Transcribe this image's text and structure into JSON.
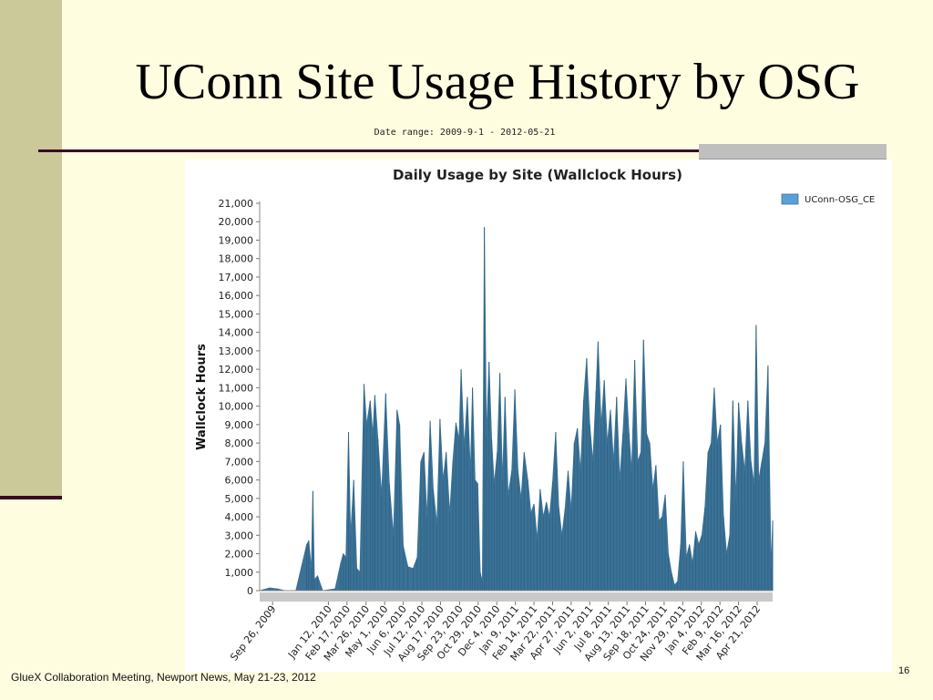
{
  "slide": {
    "title": "UConn Site Usage History by OSG",
    "footer": "GlueX Collaboration Meeting, Newport News, May 21-23, 2012",
    "page_number": "16"
  },
  "colors": {
    "background": "#fffde0",
    "sidebar": "#cbc89a",
    "rule": "#3a0a24",
    "series": "#3b7296",
    "legend_swatch": "#5aa0d8"
  },
  "chart_data": {
    "type": "bar",
    "date_range_label": "Date range: 2009-9-1 - 2012-05-21",
    "title": "Daily Usage by Site (Wallclock Hours)",
    "xlabel": "",
    "ylabel": "Wallclock Hours",
    "ylim": [
      0,
      21000
    ],
    "yticks": [
      0,
      1000,
      2000,
      3000,
      4000,
      5000,
      6000,
      7000,
      8000,
      9000,
      10000,
      11000,
      12000,
      13000,
      14000,
      15000,
      16000,
      17000,
      18000,
      19000,
      20000,
      21000
    ],
    "ytick_labels": [
      "0",
      "1,000",
      "2,000",
      "3,000",
      "4,000",
      "5,000",
      "6,000",
      "7,000",
      "8,000",
      "9,000",
      "10,000",
      "11,000",
      "12,000",
      "13,000",
      "14,000",
      "15,000",
      "16,000",
      "17,000",
      "18,000",
      "19,000",
      "20,000",
      "21,000"
    ],
    "x_start": "2009-09-01",
    "x_end": "2012-05-21",
    "xtick_labels": [
      {
        "date": "2009-09-26",
        "label": "Sep 26, 2009"
      },
      {
        "date": "2010-01-12",
        "label": "Jan 12, 2010"
      },
      {
        "date": "2010-02-17",
        "label": "Feb 17, 2010"
      },
      {
        "date": "2010-03-26",
        "label": "Mar 26, 2010"
      },
      {
        "date": "2010-05-01",
        "label": "May 1, 2010"
      },
      {
        "date": "2010-06-06",
        "label": "Jun 6, 2010"
      },
      {
        "date": "2010-07-12",
        "label": "Jul 12, 2010"
      },
      {
        "date": "2010-08-17",
        "label": "Aug 17, 2010"
      },
      {
        "date": "2010-09-23",
        "label": "Sep 23, 2010"
      },
      {
        "date": "2010-10-29",
        "label": "Oct 29, 2010"
      },
      {
        "date": "2010-12-04",
        "label": "Dec 4, 2010"
      },
      {
        "date": "2011-01-09",
        "label": "Jan 9, 2011"
      },
      {
        "date": "2011-02-14",
        "label": "Feb 14, 2011"
      },
      {
        "date": "2011-03-22",
        "label": "Mar 22, 2011"
      },
      {
        "date": "2011-04-27",
        "label": "Apr 27, 2011"
      },
      {
        "date": "2011-06-02",
        "label": "Jun 2, 2011"
      },
      {
        "date": "2011-07-08",
        "label": "Jul 8, 2011"
      },
      {
        "date": "2011-08-13",
        "label": "Aug 13, 2011"
      },
      {
        "date": "2011-09-18",
        "label": "Sep 18, 2011"
      },
      {
        "date": "2011-10-24",
        "label": "Oct 24, 2011"
      },
      {
        "date": "2011-11-29",
        "label": "Nov 29, 2011"
      },
      {
        "date": "2012-01-04",
        "label": "Jan 4, 2012"
      },
      {
        "date": "2012-02-09",
        "label": "Feb 9, 2012"
      },
      {
        "date": "2012-03-16",
        "label": "Mar 16, 2012"
      },
      {
        "date": "2012-04-21",
        "label": "Apr 21, 2012"
      }
    ],
    "legend": {
      "position": "top-right",
      "entries": [
        "UConn-OSG_CE"
      ]
    },
    "grid": false,
    "series": [
      {
        "name": "UConn-OSG_CE",
        "values_note": "",
        "points": [
          {
            "x": "2009-09-01",
            "y": 0
          },
          {
            "x": "2009-09-20",
            "y": 150
          },
          {
            "x": "2009-10-05",
            "y": 100
          },
          {
            "x": "2009-10-20",
            "y": 0
          },
          {
            "x": "2009-11-10",
            "y": 0
          },
          {
            "x": "2009-12-01",
            "y": 2500
          },
          {
            "x": "2009-12-05",
            "y": 2700
          },
          {
            "x": "2009-12-10",
            "y": 1200
          },
          {
            "x": "2009-12-13",
            "y": 5400
          },
          {
            "x": "2009-12-16",
            "y": 600
          },
          {
            "x": "2009-12-22",
            "y": 800
          },
          {
            "x": "2010-01-01",
            "y": 0
          },
          {
            "x": "2010-01-25",
            "y": 100
          },
          {
            "x": "2010-02-05",
            "y": 1500
          },
          {
            "x": "2010-02-10",
            "y": 2000
          },
          {
            "x": "2010-02-15",
            "y": 1800
          },
          {
            "x": "2010-02-20",
            "y": 8600
          },
          {
            "x": "2010-02-24",
            "y": 3000
          },
          {
            "x": "2010-03-02",
            "y": 6000
          },
          {
            "x": "2010-03-08",
            "y": 1200
          },
          {
            "x": "2010-03-14",
            "y": 1000
          },
          {
            "x": "2010-03-22",
            "y": 11200
          },
          {
            "x": "2010-03-27",
            "y": 9000
          },
          {
            "x": "2010-04-03",
            "y": 10300
          },
          {
            "x": "2010-04-08",
            "y": 8500
          },
          {
            "x": "2010-04-12",
            "y": 10600
          },
          {
            "x": "2010-04-18",
            "y": 8200
          },
          {
            "x": "2010-04-25",
            "y": 5200
          },
          {
            "x": "2010-05-03",
            "y": 10700
          },
          {
            "x": "2010-05-10",
            "y": 5800
          },
          {
            "x": "2010-05-18",
            "y": 3000
          },
          {
            "x": "2010-05-25",
            "y": 9800
          },
          {
            "x": "2010-05-30",
            "y": 9000
          },
          {
            "x": "2010-06-06",
            "y": 2400
          },
          {
            "x": "2010-06-15",
            "y": 1300
          },
          {
            "x": "2010-06-25",
            "y": 1200
          },
          {
            "x": "2010-07-03",
            "y": 1800
          },
          {
            "x": "2010-07-10",
            "y": 7000
          },
          {
            "x": "2010-07-16",
            "y": 7500
          },
          {
            "x": "2010-07-22",
            "y": 4000
          },
          {
            "x": "2010-07-28",
            "y": 9200
          },
          {
            "x": "2010-08-03",
            "y": 5500
          },
          {
            "x": "2010-08-10",
            "y": 3600
          },
          {
            "x": "2010-08-16",
            "y": 9300
          },
          {
            "x": "2010-08-22",
            "y": 6000
          },
          {
            "x": "2010-08-28",
            "y": 7500
          },
          {
            "x": "2010-09-04",
            "y": 4200
          },
          {
            "x": "2010-09-10",
            "y": 7000
          },
          {
            "x": "2010-09-16",
            "y": 9100
          },
          {
            "x": "2010-09-22",
            "y": 8200
          },
          {
            "x": "2010-09-26",
            "y": 12000
          },
          {
            "x": "2010-10-02",
            "y": 7800
          },
          {
            "x": "2010-10-08",
            "y": 10500
          },
          {
            "x": "2010-10-14",
            "y": 6500
          },
          {
            "x": "2010-10-18",
            "y": 11000
          },
          {
            "x": "2010-10-23",
            "y": 6000
          },
          {
            "x": "2010-10-28",
            "y": 5800
          },
          {
            "x": "2010-11-02",
            "y": 1000
          },
          {
            "x": "2010-11-06",
            "y": 500
          },
          {
            "x": "2010-11-10",
            "y": 19700
          },
          {
            "x": "2010-11-14",
            "y": 8400
          },
          {
            "x": "2010-11-19",
            "y": 12400
          },
          {
            "x": "2010-11-24",
            "y": 8200
          },
          {
            "x": "2010-11-29",
            "y": 5800
          },
          {
            "x": "2010-12-05",
            "y": 7500
          },
          {
            "x": "2010-12-10",
            "y": 11800
          },
          {
            "x": "2010-12-15",
            "y": 6000
          },
          {
            "x": "2010-12-20",
            "y": 10500
          },
          {
            "x": "2010-12-26",
            "y": 5200
          },
          {
            "x": "2011-01-02",
            "y": 6500
          },
          {
            "x": "2011-01-08",
            "y": 10900
          },
          {
            "x": "2011-01-14",
            "y": 6500
          },
          {
            "x": "2011-01-20",
            "y": 5000
          },
          {
            "x": "2011-01-26",
            "y": 7500
          },
          {
            "x": "2011-02-02",
            "y": 6000
          },
          {
            "x": "2011-02-08",
            "y": 4200
          },
          {
            "x": "2011-02-14",
            "y": 4700
          },
          {
            "x": "2011-02-20",
            "y": 2800
          },
          {
            "x": "2011-02-26",
            "y": 5500
          },
          {
            "x": "2011-03-04",
            "y": 4000
          },
          {
            "x": "2011-03-10",
            "y": 4800
          },
          {
            "x": "2011-03-16",
            "y": 4000
          },
          {
            "x": "2011-03-22",
            "y": 5900
          },
          {
            "x": "2011-03-28",
            "y": 8600
          },
          {
            "x": "2011-04-03",
            "y": 4500
          },
          {
            "x": "2011-04-09",
            "y": 3000
          },
          {
            "x": "2011-04-15",
            "y": 4400
          },
          {
            "x": "2011-04-21",
            "y": 6500
          },
          {
            "x": "2011-04-27",
            "y": 4400
          },
          {
            "x": "2011-05-03",
            "y": 8000
          },
          {
            "x": "2011-05-09",
            "y": 8800
          },
          {
            "x": "2011-05-15",
            "y": 6500
          },
          {
            "x": "2011-05-21",
            "y": 10300
          },
          {
            "x": "2011-05-27",
            "y": 12600
          },
          {
            "x": "2011-06-02",
            "y": 9000
          },
          {
            "x": "2011-06-08",
            "y": 7000
          },
          {
            "x": "2011-06-14",
            "y": 10800
          },
          {
            "x": "2011-06-18",
            "y": 13500
          },
          {
            "x": "2011-06-24",
            "y": 9000
          },
          {
            "x": "2011-06-30",
            "y": 11400
          },
          {
            "x": "2011-07-06",
            "y": 8000
          },
          {
            "x": "2011-07-12",
            "y": 9800
          },
          {
            "x": "2011-07-18",
            "y": 7000
          },
          {
            "x": "2011-07-24",
            "y": 10500
          },
          {
            "x": "2011-07-30",
            "y": 6000
          },
          {
            "x": "2011-08-05",
            "y": 8500
          },
          {
            "x": "2011-08-11",
            "y": 11500
          },
          {
            "x": "2011-08-17",
            "y": 8500
          },
          {
            "x": "2011-08-22",
            "y": 6500
          },
          {
            "x": "2011-08-28",
            "y": 12500
          },
          {
            "x": "2011-09-03",
            "y": 7000
          },
          {
            "x": "2011-09-09",
            "y": 7500
          },
          {
            "x": "2011-09-14",
            "y": 13600
          },
          {
            "x": "2011-09-20",
            "y": 8500
          },
          {
            "x": "2011-09-26",
            "y": 8000
          },
          {
            "x": "2011-10-02",
            "y": 5500
          },
          {
            "x": "2011-10-08",
            "y": 6800
          },
          {
            "x": "2011-10-14",
            "y": 3800
          },
          {
            "x": "2011-10-20",
            "y": 4000
          },
          {
            "x": "2011-10-26",
            "y": 5200
          },
          {
            "x": "2011-11-01",
            "y": 2000
          },
          {
            "x": "2011-11-07",
            "y": 1000
          },
          {
            "x": "2011-11-13",
            "y": 300
          },
          {
            "x": "2011-11-19",
            "y": 500
          },
          {
            "x": "2011-11-25",
            "y": 2500
          },
          {
            "x": "2011-11-30",
            "y": 7000
          },
          {
            "x": "2011-12-06",
            "y": 1800
          },
          {
            "x": "2011-12-12",
            "y": 2500
          },
          {
            "x": "2011-12-18",
            "y": 1500
          },
          {
            "x": "2011-12-24",
            "y": 3200
          },
          {
            "x": "2011-12-30",
            "y": 2500
          },
          {
            "x": "2012-01-05",
            "y": 3000
          },
          {
            "x": "2012-01-11",
            "y": 4500
          },
          {
            "x": "2012-01-17",
            "y": 7500
          },
          {
            "x": "2012-01-23",
            "y": 8000
          },
          {
            "x": "2012-01-29",
            "y": 11000
          },
          {
            "x": "2012-02-04",
            "y": 8000
          },
          {
            "x": "2012-02-10",
            "y": 9000
          },
          {
            "x": "2012-02-16",
            "y": 4000
          },
          {
            "x": "2012-02-22",
            "y": 2000
          },
          {
            "x": "2012-02-28",
            "y": 3000
          },
          {
            "x": "2012-03-05",
            "y": 10300
          },
          {
            "x": "2012-03-11",
            "y": 5000
          },
          {
            "x": "2012-03-16",
            "y": 10200
          },
          {
            "x": "2012-03-22",
            "y": 8000
          },
          {
            "x": "2012-03-28",
            "y": 6500
          },
          {
            "x": "2012-04-03",
            "y": 10300
          },
          {
            "x": "2012-04-09",
            "y": 7000
          },
          {
            "x": "2012-04-15",
            "y": 5800
          },
          {
            "x": "2012-04-19",
            "y": 14400
          },
          {
            "x": "2012-04-24",
            "y": 6000
          },
          {
            "x": "2012-04-30",
            "y": 7000
          },
          {
            "x": "2012-05-06",
            "y": 8000
          },
          {
            "x": "2012-05-12",
            "y": 12200
          },
          {
            "x": "2012-05-18",
            "y": 1200
          },
          {
            "x": "2012-05-21",
            "y": 3800
          }
        ]
      }
    ]
  }
}
